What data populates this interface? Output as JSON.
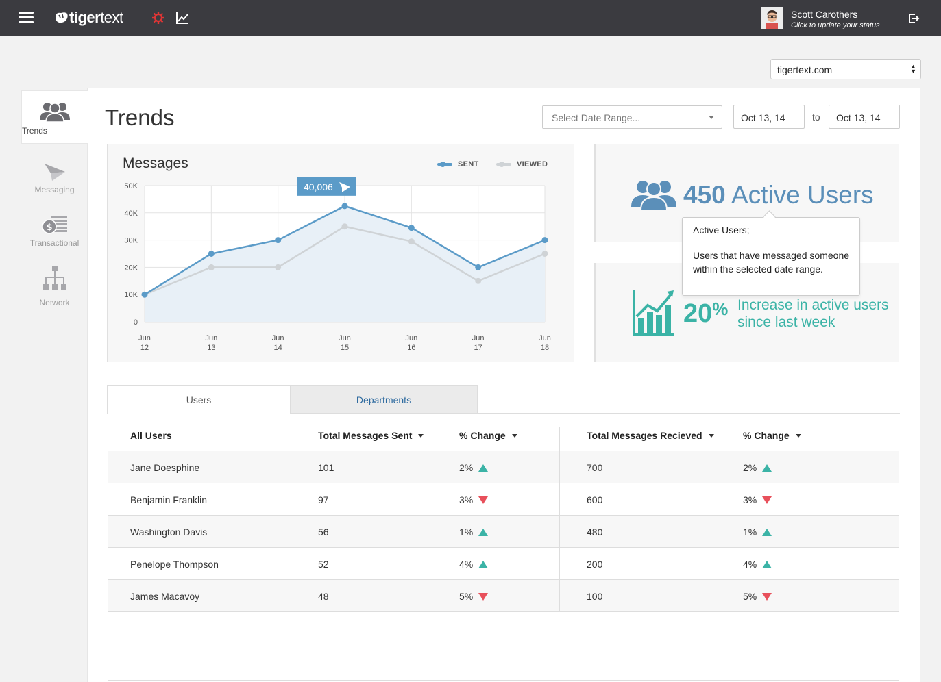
{
  "app": {
    "brand_text": "tigertext",
    "user": {
      "name": "Scott Carothers",
      "status_prompt": "Click to update your status"
    }
  },
  "domain_select": {
    "value": "tigertext.com"
  },
  "sidebar": {
    "items": [
      {
        "label": "Trends",
        "icon": "users-icon",
        "active": true
      },
      {
        "label": "Messaging",
        "icon": "paper-plane-icon",
        "active": false
      },
      {
        "label": "Transactional",
        "icon": "dollar-icon",
        "active": false
      },
      {
        "label": "Network",
        "icon": "network-icon",
        "active": false
      }
    ]
  },
  "page": {
    "title": "Trends"
  },
  "filters": {
    "date_range_placeholder": "Select Date Range...",
    "from_date": "Oct 13, 14",
    "to_label": "to",
    "to_date": "Oct 13, 14"
  },
  "chart": {
    "title": "Messages",
    "legend_sent": "SENT",
    "legend_viewed": "VIEWED",
    "callout_value": "40,006"
  },
  "chart_data": {
    "type": "line",
    "title": "Messages",
    "xlabel": "",
    "ylabel": "",
    "categories": [
      "Jun 12",
      "Jun 13",
      "Jun 14",
      "Jun 15",
      "Jun 16",
      "Jun 17",
      "Jun 18"
    ],
    "y_ticks": [
      "0",
      "10K",
      "20K",
      "30K",
      "40K",
      "50K"
    ],
    "ylim": [
      0,
      50000
    ],
    "grid": true,
    "legend_position": "top-right",
    "series": [
      {
        "name": "SENT",
        "color": "#5b9bc8",
        "values": [
          10000,
          25000,
          30000,
          42500,
          34500,
          20000,
          30000
        ]
      },
      {
        "name": "VIEWED",
        "color": "#cfd3d6",
        "values": [
          10000,
          20000,
          20000,
          35000,
          29500,
          15000,
          25000
        ]
      }
    ]
  },
  "stats": {
    "active_users_count": "450",
    "active_users_label": "Active Users",
    "increase_value": "20",
    "increase_unit": "%",
    "increase_text": "Increase in active users since last week"
  },
  "tooltip": {
    "title": "Active Users;",
    "body": "Users that have messaged someone within the selected date range."
  },
  "tabs": [
    {
      "label": "Users",
      "active": true
    },
    {
      "label": "Departments",
      "active": false
    }
  ],
  "table": {
    "headers": {
      "all_users": "All Users",
      "sent": "Total Messages Sent",
      "sent_change": "% Change",
      "received": "Total Messages Recieved",
      "received_change": "% Change"
    },
    "rows": [
      {
        "name": "Jane Doesphine",
        "sent": "101",
        "sent_change": "2%",
        "sent_dir": "up",
        "received": "700",
        "received_change": "2%",
        "received_dir": "up"
      },
      {
        "name": "Benjamin Franklin",
        "sent": "97",
        "sent_change": "3%",
        "sent_dir": "down",
        "received": "600",
        "received_change": "3%",
        "received_dir": "down"
      },
      {
        "name": "Washington Davis",
        "sent": "56",
        "sent_change": "1%",
        "sent_dir": "up",
        "received": "480",
        "received_change": "1%",
        "received_dir": "up"
      },
      {
        "name": "Penelope Thompson",
        "sent": "52",
        "sent_change": "4%",
        "sent_dir": "up",
        "received": "200",
        "received_change": "4%",
        "received_dir": "up"
      },
      {
        "name": "James Macavoy",
        "sent": "48",
        "sent_change": "5%",
        "sent_dir": "down",
        "received": "100",
        "received_change": "5%",
        "received_dir": "down"
      }
    ]
  },
  "colors": {
    "topbar": "#3b3b40",
    "accent_blue": "#5b8fb9",
    "accent_teal": "#3bb3a6",
    "down_red": "#e8505b"
  }
}
